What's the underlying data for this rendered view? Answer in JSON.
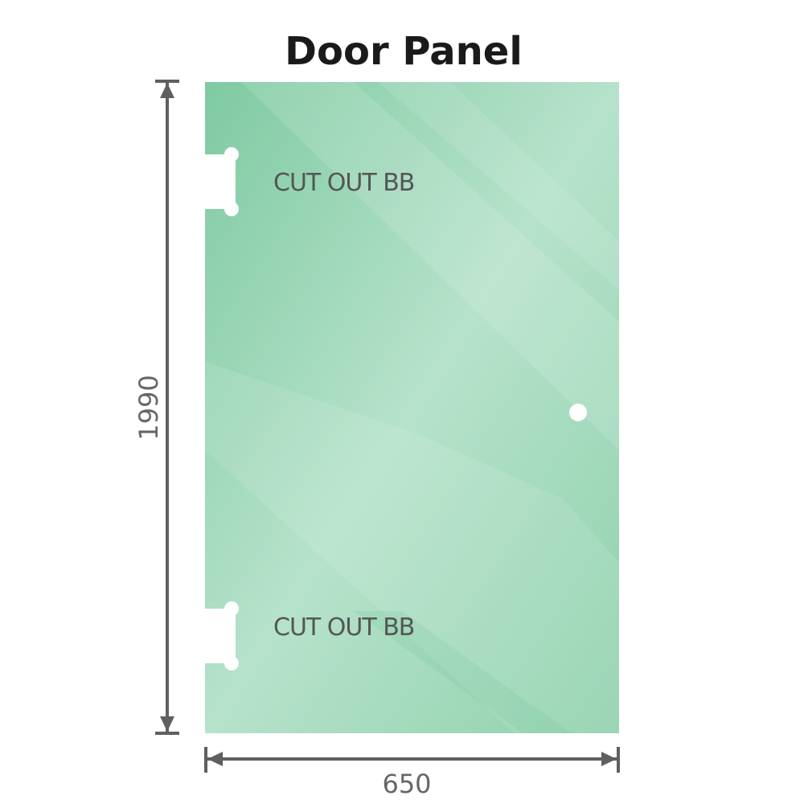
{
  "title": "Door Panel",
  "panel": {
    "color": "#86cfa8",
    "cutouts": [
      {
        "label": "CUT OUT BB"
      },
      {
        "label": "CUT OUT BB"
      }
    ],
    "has_handle_hole": true
  },
  "dimensions": {
    "height": "1990",
    "width": "650",
    "line_color": "#5f5f5f"
  }
}
